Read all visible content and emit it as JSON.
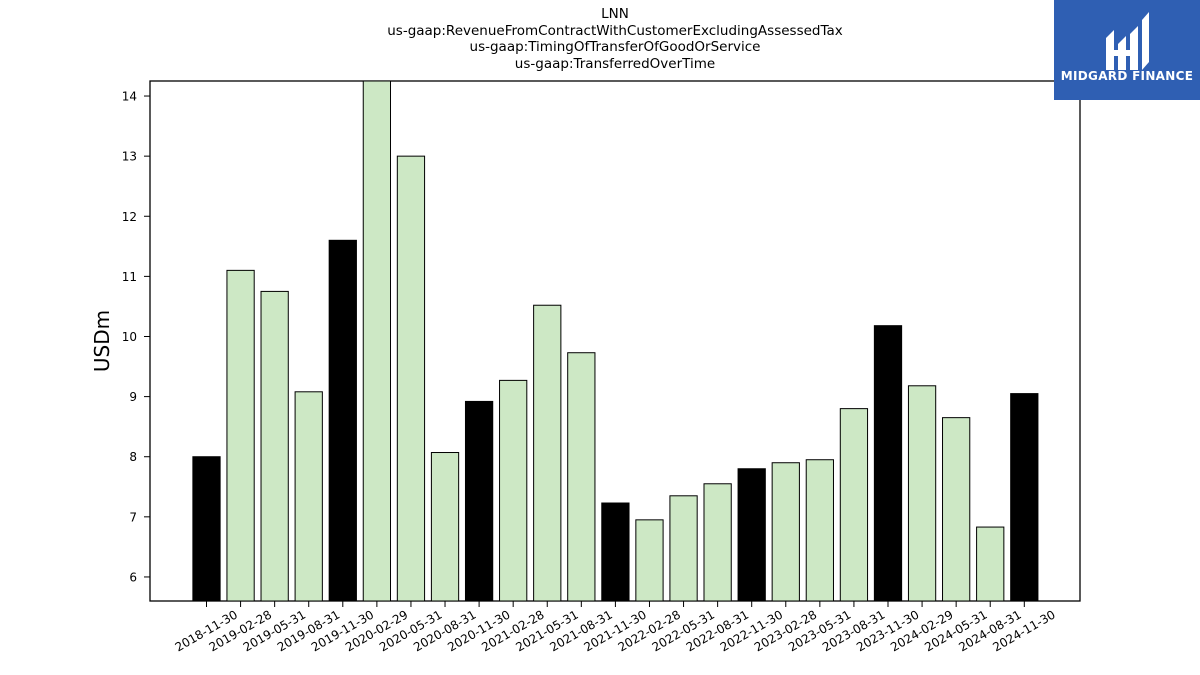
{
  "title_lines": [
    "LNN",
    "us-gaap:RevenueFromContractWithCustomerExcludingAssessedTax",
    "us-gaap:TimingOfTransferOfGoodOrService",
    "us-gaap:TransferredOverTime"
  ],
  "logo": {
    "text": "MIDGARD FINANCE",
    "icon": "midgard-logo-icon",
    "background": "#2f5fb3"
  },
  "chart_data": {
    "type": "bar",
    "title": "LNN\nus-gaap:RevenueFromContractWithCustomerExcludingAssessedTax\nus-gaap:TimingOfTransferOfGoodOrService\nus-gaap:TransferredOverTime",
    "xlabel": "",
    "ylabel": "USDm",
    "ylim": [
      5.6,
      14.25
    ],
    "yticks": [
      6,
      7,
      8,
      9,
      10,
      11,
      12,
      13,
      14
    ],
    "grid": false,
    "categories": [
      "2018-11-30",
      "2019-02-28",
      "2019-05-31",
      "2019-08-31",
      "2019-11-30",
      "2020-02-29",
      "2020-05-31",
      "2020-08-31",
      "2020-11-30",
      "2021-02-28",
      "2021-05-31",
      "2021-08-31",
      "2021-11-30",
      "2022-02-28",
      "2022-05-31",
      "2022-08-31",
      "2022-11-30",
      "2023-02-28",
      "2023-05-31",
      "2023-08-31",
      "2023-11-30",
      "2024-02-29",
      "2024-05-31",
      "2024-08-31",
      "2024-11-30"
    ],
    "values": [
      8.0,
      11.1,
      10.75,
      9.08,
      11.6,
      14.3,
      13.0,
      8.07,
      8.92,
      9.27,
      10.52,
      9.73,
      7.23,
      6.95,
      7.35,
      7.55,
      7.8,
      7.9,
      7.95,
      8.8,
      10.18,
      9.18,
      8.65,
      6.83,
      9.05
    ],
    "colors": {
      "fiscal_year_end": "#000000",
      "quarter": "#cde8c5",
      "edge": "#000000"
    },
    "highlight_month": "11-30"
  }
}
